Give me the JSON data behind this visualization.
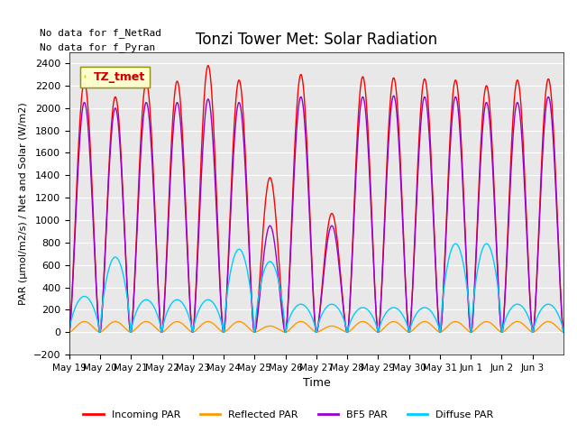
{
  "title": "Tonzi Tower Met: Solar Radiation",
  "ylabel": "PAR (μmol/m2/s) / Net and Solar (W/m2)",
  "xlabel": "Time",
  "ylim": [
    -200,
    2500
  ],
  "yticks": [
    -200,
    0,
    200,
    400,
    600,
    800,
    1000,
    1200,
    1400,
    1600,
    1800,
    2000,
    2200,
    2400
  ],
  "bg_color": "#e8e8e8",
  "colors": {
    "incoming": "#ff0000",
    "reflected": "#ff9900",
    "bf5": "#9900cc",
    "diffuse": "#00ccff"
  },
  "note1": "No data for f_NetRad",
  "note2": "No data for f_Pyran",
  "legend_label": "TZ_tmet",
  "x_tick_labels": [
    "May 19",
    "May 20",
    "May 21",
    "May 22",
    "May 23",
    "May 24",
    "May 25",
    "May 26",
    "May 27",
    "May 28",
    "May 29",
    "May 30",
    "May 31",
    "Jun 1",
    "Jun 2",
    "Jun 3"
  ],
  "n_days": 16,
  "day_peaks_incoming": [
    2230,
    2100,
    2230,
    2240,
    2380,
    2250,
    1380,
    2300,
    1060,
    2280,
    2270,
    2260,
    2250,
    2200,
    2250,
    2260
  ],
  "day_peaks_bf5": [
    2050,
    2000,
    2050,
    2050,
    2080,
    2050,
    950,
    2100,
    950,
    2100,
    2110,
    2100,
    2100,
    2050,
    2050,
    2100
  ],
  "day_peaks_diffuse": [
    320,
    670,
    290,
    290,
    290,
    740,
    630,
    250,
    250,
    220,
    220,
    220,
    790,
    790,
    250,
    250
  ],
  "day_peaks_reflected": [
    95,
    95,
    95,
    95,
    95,
    95,
    55,
    95,
    55,
    95,
    95,
    95,
    95,
    95,
    95,
    95
  ]
}
